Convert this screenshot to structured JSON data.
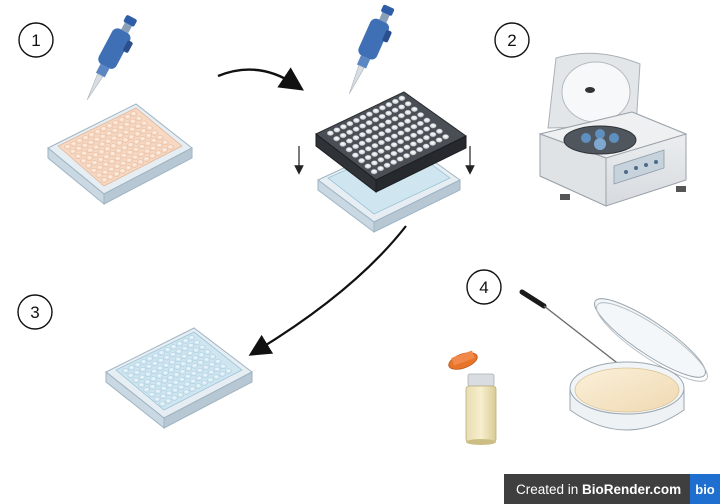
{
  "steps": [
    "1",
    "2",
    "3",
    "4"
  ],
  "watermark": {
    "prefix": "Created in ",
    "brand": "BioRender.com",
    "logo": "bio"
  },
  "colors": {
    "plate_peach": "#f6d8c3",
    "plate_blue": "#cfe6f1",
    "plate_dark": "#3a3d42",
    "pipette_blue": "#3f6fb5",
    "agar": "#f6e7c8",
    "cap_orange": "#e8742a",
    "centrifuge": "#e9ecef",
    "arrow": "#111111"
  },
  "icons": [
    "pipette-icon",
    "well-plate-icon",
    "centrifuge-icon",
    "culture-tube-icon",
    "petri-dish-icon",
    "inoculation-loop-icon"
  ]
}
